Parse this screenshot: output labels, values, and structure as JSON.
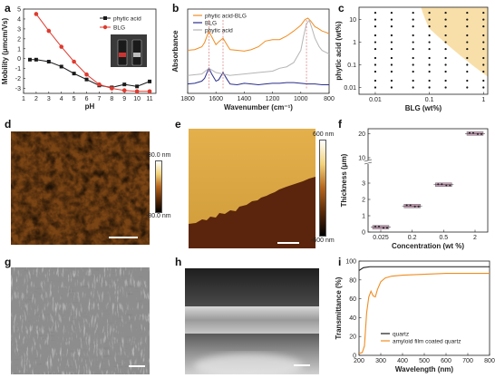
{
  "panels": {
    "a": "a",
    "b": "b",
    "c": "c",
    "d": "d",
    "e": "e",
    "f": "f",
    "g": "g",
    "h": "h",
    "i": "i"
  },
  "colorbar_d": {
    "top": "80.0 nm",
    "bottom": "-80.0 nm"
  },
  "colorbar_e": {
    "top": "600 nm",
    "bottom": "-600 nm"
  },
  "colors": {
    "black": "#1a1a1a",
    "red": "#e03a2f",
    "orange": "#f08c21",
    "navy": "#2a2f8a",
    "gray": "#b5b5b5",
    "shade": "#f8dfaa",
    "afm_dark": "#3a1d06",
    "afm_light": "#e8c060"
  },
  "chart_data": [
    {
      "id": "a",
      "type": "line",
      "xlabel": "pH",
      "ylabel": "Mobility (μmcm/Vs)",
      "xlim": [
        1,
        11.5
      ],
      "ylim": [
        -3.5,
        5
      ],
      "xticks": [
        1,
        2,
        3,
        4,
        5,
        6,
        7,
        8,
        9,
        10,
        11
      ],
      "yticks": [
        -3,
        -2,
        -1,
        0,
        1,
        2,
        3,
        4,
        5
      ],
      "legend_position": "top-right",
      "series": [
        {
          "name": "phytic acid",
          "color": "#1a1a1a",
          "marker": "square",
          "x": [
            1.5,
            2,
            3,
            4,
            5,
            6,
            7,
            8,
            9,
            10,
            11
          ],
          "values": [
            -0.1,
            -0.1,
            -0.3,
            -0.8,
            -1.5,
            -2.1,
            -2.7,
            -2.9,
            -2.6,
            -2.8,
            -2.3
          ]
        },
        {
          "name": "BLG",
          "color": "#e03a2f",
          "marker": "circle",
          "x": [
            2,
            3,
            4,
            5,
            6,
            7,
            8,
            9,
            10,
            11
          ],
          "values": [
            4.5,
            2.8,
            1.2,
            -0.3,
            -1.6,
            -2.6,
            -3.0,
            -3.2,
            -3.3,
            -3.3
          ]
        }
      ]
    },
    {
      "id": "b",
      "type": "line",
      "xlabel": "Wavenumber (cm⁻¹)",
      "ylabel": "Absorbance",
      "xlim": [
        1800,
        800
      ],
      "xticks": [
        1800,
        1600,
        1400,
        1200,
        1000,
        800
      ],
      "legend_position": "top-left",
      "series": [
        {
          "name": "phytic acid-BLG",
          "color": "#f08c21",
          "x": [
            1800,
            1750,
            1700,
            1680,
            1650,
            1630,
            1600,
            1580,
            1550,
            1520,
            1500,
            1450,
            1400,
            1350,
            1300,
            1250,
            1200,
            1150,
            1100,
            1050,
            1000,
            970,
            950,
            930,
            900,
            880,
            850,
            820,
            800
          ],
          "values": [
            0.55,
            0.56,
            0.6,
            0.66,
            0.82,
            0.74,
            0.63,
            0.67,
            0.72,
            0.62,
            0.56,
            0.55,
            0.54,
            0.56,
            0.6,
            0.68,
            0.7,
            0.7,
            0.75,
            0.82,
            0.9,
            0.98,
            1.0,
            0.96,
            0.88,
            0.86,
            0.82,
            0.8,
            0.78
          ]
        },
        {
          "name": "BLG",
          "color": "#2a2f8a",
          "x": [
            1800,
            1750,
            1700,
            1680,
            1650,
            1630,
            1600,
            1580,
            1550,
            1520,
            1500,
            1450,
            1400,
            1350,
            1300,
            1250,
            1200,
            1150,
            1100,
            1050,
            1000,
            950,
            900,
            850,
            800
          ],
          "values": [
            0.08,
            0.09,
            0.12,
            0.16,
            0.3,
            0.22,
            0.12,
            0.14,
            0.24,
            0.14,
            0.08,
            0.07,
            0.09,
            0.08,
            0.07,
            0.08,
            0.09,
            0.09,
            0.1,
            0.1,
            0.09,
            0.08,
            0.08,
            0.07,
            0.07
          ]
        },
        {
          "name": "phytic acid",
          "color": "#b5b5b5",
          "x": [
            1800,
            1700,
            1650,
            1600,
            1500,
            1400,
            1300,
            1200,
            1150,
            1100,
            1050,
            1000,
            980,
            960,
            940,
            920,
            900,
            870,
            850,
            820,
            800
          ],
          "values": [
            0.2,
            0.22,
            0.3,
            0.24,
            0.2,
            0.22,
            0.24,
            0.26,
            0.3,
            0.32,
            0.38,
            0.55,
            0.75,
            0.92,
            0.97,
            0.85,
            0.72,
            0.6,
            0.55,
            0.52,
            0.5
          ]
        }
      ]
    },
    {
      "id": "c",
      "type": "scatter",
      "xlabel": "BLG (wt%)",
      "ylabel": "phytic acid (wt%)",
      "xscale": "log",
      "yscale": "log",
      "xlim": [
        0.005,
        1.2
      ],
      "ylim": [
        0.005,
        35
      ],
      "xticks": [
        0.01,
        0.1,
        1
      ],
      "yticks": [
        0.01,
        0.1,
        1,
        10
      ],
      "x_ticklabels": [
        "0.01",
        "0.1",
        "1"
      ],
      "y_ticklabels": [
        "0.01",
        "0.1",
        "1",
        "10"
      ],
      "grid_x": [
        0.01,
        0.02,
        0.05,
        0.1,
        0.2,
        0.5,
        1
      ],
      "grid_y": [
        0.01,
        0.02,
        0.05,
        0.1,
        0.2,
        0.5,
        1,
        2,
        5,
        10,
        20
      ],
      "shaded_region": "upper-right"
    },
    {
      "id": "f",
      "type": "scatter",
      "xlabel": "Concentration (wt %)",
      "ylabel": "Thickness (μm)",
      "categories": [
        "0.025",
        "0.2",
        "0.5",
        "2"
      ],
      "values": [
        0.3,
        1.6,
        2.9,
        20
      ],
      "yticks": [
        0,
        1,
        2,
        3,
        10,
        20
      ],
      "axis_break": true
    },
    {
      "id": "i",
      "type": "line",
      "xlabel": "Wavelength (nm)",
      "ylabel": "Transmittance (%)",
      "xlim": [
        200,
        800
      ],
      "ylim": [
        0,
        100
      ],
      "xticks": [
        200,
        300,
        400,
        500,
        600,
        700,
        800
      ],
      "yticks": [
        0,
        20,
        40,
        60,
        80,
        100
      ],
      "legend_position": "bottom-right",
      "series": [
        {
          "name": "quartz",
          "color": "#1a1a1a",
          "x": [
            200,
            220,
            250,
            300,
            400,
            500,
            600,
            700,
            800
          ],
          "values": [
            90,
            93,
            94,
            94,
            94,
            94,
            94,
            94,
            94
          ]
        },
        {
          "name": "amyloid film coated quartz",
          "color": "#f08c21",
          "x": [
            200,
            215,
            225,
            235,
            245,
            255,
            265,
            275,
            285,
            300,
            320,
            350,
            400,
            500,
            600,
            700,
            800
          ],
          "values": [
            2,
            3,
            10,
            45,
            62,
            68,
            63,
            62,
            70,
            78,
            82,
            84,
            85,
            86,
            87,
            87,
            87
          ]
        }
      ]
    }
  ]
}
